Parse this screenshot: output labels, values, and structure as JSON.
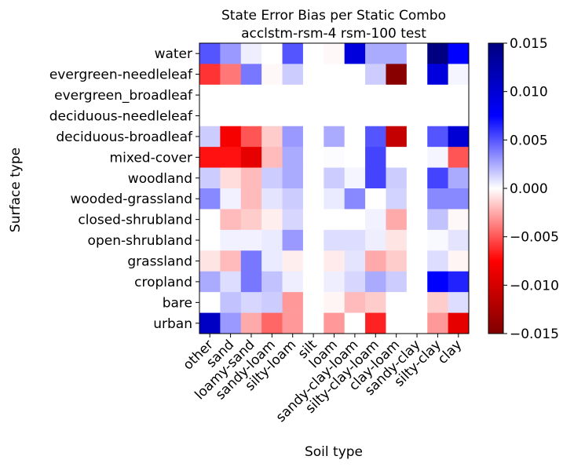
{
  "chart_data": {
    "type": "heatmap",
    "title": "State Error Bias per Static Combo",
    "subtitle": "acclstm-rsm-4 rsm-100 test",
    "xlabel": "Soil type",
    "ylabel": "Surface type",
    "x_categories": [
      "other",
      "sand",
      "loamy-sand",
      "sandy-loam",
      "silty-loam",
      "silt",
      "loam",
      "sandy-clay-loam",
      "silty-clay-loam",
      "clay-loam",
      "sandy-clay",
      "silty-clay",
      "clay"
    ],
    "y_categories": [
      "water",
      "evergreen-needleleaf",
      "evergreen_broadleaf",
      "deciduous-needleleaf",
      "deciduous-broadleaf",
      "mixed-cover",
      "woodland",
      "wooded-grassland",
      "closed-shrubland",
      "open-shrubland",
      "grassland",
      "cropland",
      "bare",
      "urban"
    ],
    "values": [
      [
        0.005,
        0.003,
        0.0005,
        0.0,
        0.005,
        0.0,
        -0.0002,
        0.0095,
        0.0025,
        0.0025,
        0.0,
        0.015,
        0.0075
      ],
      [
        -0.006,
        -0.004,
        0.004,
        -0.0002,
        0.0015,
        0.0,
        0.0,
        0.0,
        0.0015,
        -0.0145,
        0.0,
        0.0095,
        0.0003
      ],
      [
        0.0,
        0.0,
        0.0,
        0.0,
        0.0,
        0.0,
        0.0,
        0.0,
        0.0,
        0.0,
        0.0,
        0.0,
        0.0
      ],
      [
        0.0,
        0.0,
        0.0,
        0.0,
        0.0,
        0.0,
        0.0,
        0.0,
        0.0,
        0.0,
        0.0,
        0.0,
        0.0
      ],
      [
        0.0015,
        -0.008,
        -0.005,
        -0.0015,
        0.003,
        0.0,
        0.0025,
        0.0,
        0.005,
        -0.011,
        0.0,
        0.005,
        0.01
      ],
      [
        -0.007,
        -0.007,
        -0.009,
        -0.002,
        0.0025,
        0.0,
        0.0001,
        0.0,
        0.0055,
        0.0,
        0.0,
        0.0003,
        -0.005
      ],
      [
        0.0015,
        -0.001,
        -0.002,
        0.0015,
        0.0025,
        0.0,
        0.0015,
        0.0003,
        0.0055,
        0.0015,
        0.0,
        0.0055,
        0.0025
      ],
      [
        0.0035,
        0.0004,
        -0.002,
        0.0008,
        0.0015,
        0.0,
        0.0006,
        0.0035,
        0.0,
        0.0013,
        0.0,
        0.0035,
        0.0035
      ],
      [
        0.0,
        -0.002,
        -0.0015,
        -0.0005,
        0.0012,
        0.0,
        0.0,
        0.0,
        0.0004,
        -0.0025,
        0.0,
        0.0018,
        -0.0002
      ],
      [
        0.0,
        0.0004,
        0.0004,
        0.0006,
        0.003,
        0.0,
        0.001,
        0.001,
        0.0005,
        -0.0008,
        0.0,
        0.0002,
        0.0008
      ],
      [
        -0.0008,
        -0.002,
        0.004,
        0.0006,
        -0.0005,
        0.0,
        -0.0006,
        0.0008,
        -0.0025,
        -0.0015,
        0.0,
        0.001,
        -0.0003
      ],
      [
        0.0025,
        0.001,
        0.004,
        0.0018,
        0.0005,
        0.0,
        0.0005,
        0.0012,
        0.0025,
        0.0015,
        0.0,
        0.0075,
        0.0065
      ],
      [
        0.0,
        0.0018,
        0.0012,
        0.0015,
        -0.003,
        0.0,
        -0.0003,
        -0.002,
        -0.0015,
        0.0,
        0.0,
        -0.0015,
        0.001
      ],
      [
        0.011,
        0.003,
        -0.0025,
        -0.0045,
        -0.003,
        0.0,
        -0.003,
        0.0,
        -0.0065,
        0.0,
        0.0,
        -0.003,
        -0.009
      ]
    ],
    "colorbar": {
      "colormap": "seismic_r",
      "vmin": -0.015,
      "vmax": 0.015,
      "ticks": [
        0.015,
        0.01,
        0.005,
        0.0,
        -0.005,
        -0.01,
        -0.015
      ],
      "tick_labels": [
        "0.015",
        "0.010",
        "0.005",
        "0.000",
        "−0.005",
        "−0.010",
        "−0.015"
      ]
    },
    "grid": false,
    "legend": "none"
  }
}
